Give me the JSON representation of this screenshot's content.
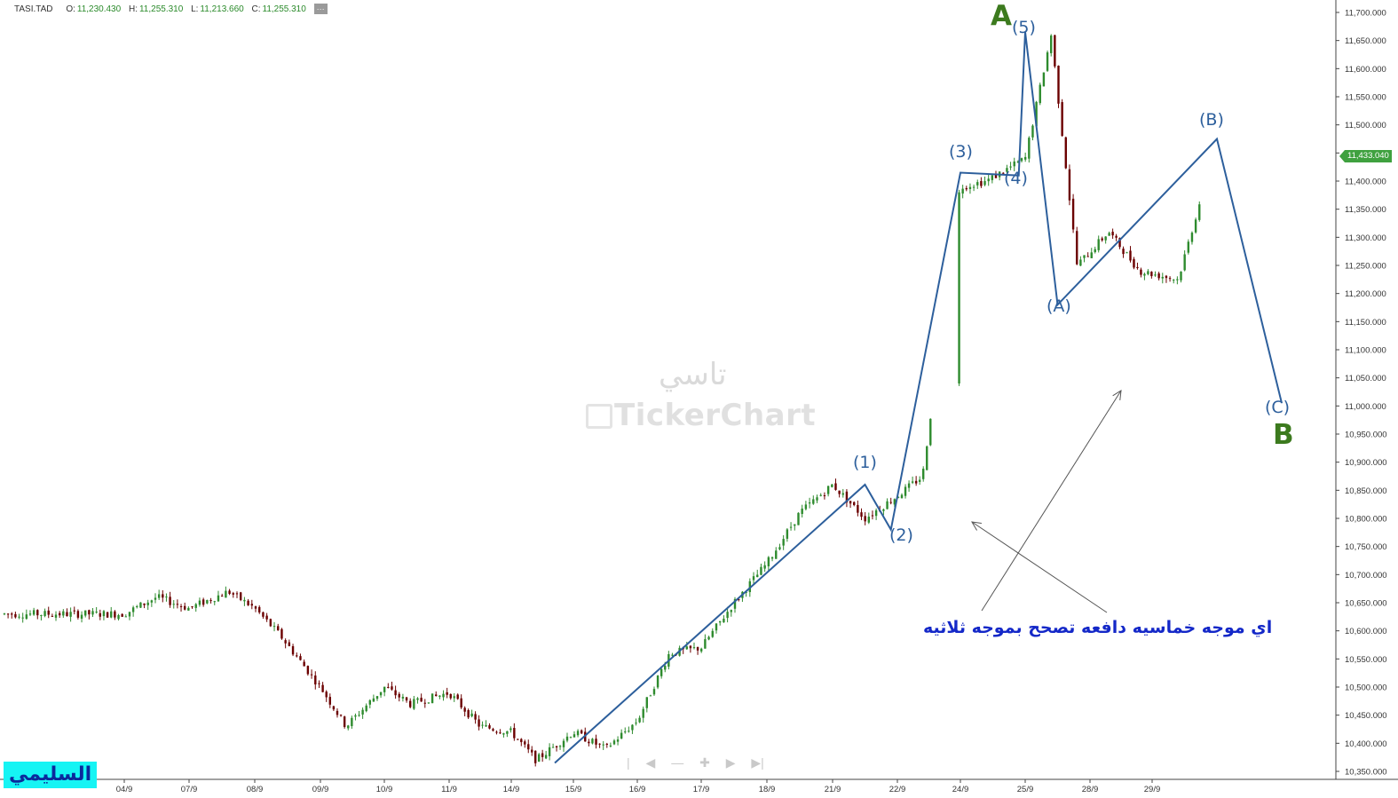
{
  "header": {
    "symbol": "TASI.TAD",
    "open_label": "O:",
    "open": "11,230.430",
    "high_label": "H:",
    "high": "11,255.310",
    "low_label": "L:",
    "low": "11,213.660",
    "close_label": "C:",
    "close": "11,255.310",
    "more": "···"
  },
  "last_price": "11,433.040",
  "watermark": {
    "arabic": "تاسي",
    "brand": "TickerChart"
  },
  "annotation_note": "اي موجه خماسيه دافعه تصحح بموجه ثلاثيه",
  "signature": "السليمي",
  "wave_labels": {
    "w1": "(1)",
    "w2": "(2)",
    "w3": "(3)",
    "w4": "(4)",
    "w5": "(5)",
    "wA": "(A)",
    "wB": "(B)",
    "wC": "(C)",
    "bigA": "A",
    "bigB": "B"
  },
  "navigator": [
    "|",
    "◀",
    "—",
    "✚",
    "▶",
    "▶|"
  ],
  "colors": {
    "up": "#2e8b2e",
    "down": "#6b0000",
    "wave_line": "#2d5f9c",
    "big_label": "#3c7a1e",
    "note": "#1428c8"
  },
  "chart_data": {
    "type": "candlestick",
    "title": "TASI.TAD",
    "xlabel": "",
    "ylabel": "",
    "x_tick_labels": [
      "04/9",
      "07/9",
      "08/9",
      "09/9",
      "10/9",
      "11/9",
      "14/9",
      "15/9",
      "16/9",
      "17/9",
      "18/9",
      "21/9",
      "22/9",
      "24/9",
      "25/9",
      "28/9",
      "29/9"
    ],
    "y_tick_labels": [
      "10,350.000",
      "10,400.000",
      "10,450.000",
      "10,500.000",
      "10,550.000",
      "10,600.000",
      "10,650.000",
      "10,700.000",
      "10,750.000",
      "10,800.000",
      "10,850.000",
      "10,900.000",
      "10,950.000",
      "11,000.000",
      "11,050.000",
      "11,100.000",
      "11,150.000",
      "11,200.000",
      "11,250.000",
      "11,300.000",
      "11,350.000",
      "11,400.000",
      "11,450.000",
      "11,500.000",
      "11,550.000",
      "11,600.000",
      "11,650.000",
      "11,700.000"
    ],
    "ylim": [
      10350,
      11700
    ],
    "price_path": {
      "session_index": [
        0,
        0.5,
        1,
        1.6,
        2,
        2.4,
        3,
        3.4,
        4,
        4.4,
        5,
        5.5,
        6,
        6.4,
        7,
        7.5,
        8,
        8.5,
        9,
        9.5,
        10,
        10.5,
        11,
        11.5,
        12,
        12.4,
        13,
        13.4,
        14,
        14.4,
        14.8,
        15.3,
        15.8,
        16.4,
        16.9
      ],
      "close": [
        10630,
        10660,
        10640,
        10670,
        10640,
        10590,
        10500,
        10430,
        10500,
        10470,
        10490,
        10430,
        10420,
        10370,
        10420,
        10390,
        10440,
        10560,
        10570,
        10650,
        10720,
        10810,
        10860,
        10800,
        10840,
        10875,
        11390,
        11400,
        11440,
        11660,
        11250,
        11310,
        11240,
        11225,
        11430
      ]
    },
    "grid": false,
    "legend": "none"
  },
  "elliott_waves": {
    "impulse": [
      {
        "label": "start",
        "session": 6.7,
        "price": 10365
      },
      {
        "label": "(1)",
        "session": 11.5,
        "price": 10860
      },
      {
        "label": "(2)",
        "session": 11.9,
        "price": 10780
      },
      {
        "label": "(3)",
        "session": 13.0,
        "price": 11415
      },
      {
        "label": "(4)",
        "session": 13.9,
        "price": 11410
      },
      {
        "label": "(5)",
        "session": 14.0,
        "price": 11665
      }
    ],
    "correction": [
      {
        "label": "(5)",
        "session": 14.0,
        "price": 11665
      },
      {
        "label": "(A)",
        "session": 14.5,
        "price": 11180
      },
      {
        "label": "(B)",
        "session": 17.0,
        "price": 11475
      },
      {
        "label": "(C)",
        "session": 18.0,
        "price": 11005
      }
    ]
  }
}
